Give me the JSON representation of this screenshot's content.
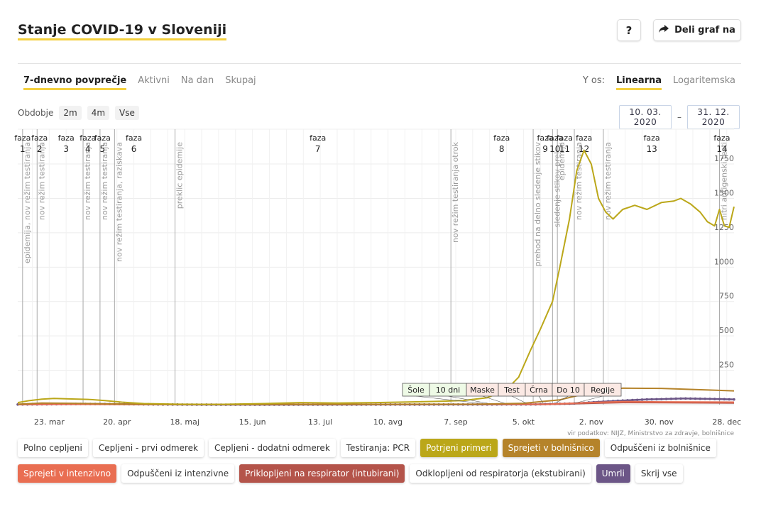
{
  "header": {
    "title": "Stanje COVID-19 v Sloveniji",
    "help_label": "?",
    "share_label": "Deli graf na"
  },
  "mode_tabs": [
    "7-dnevno povprečje",
    "Aktivni",
    "Na dan",
    "Skupaj"
  ],
  "active_mode": "7-dnevno povprečje",
  "yaxis": {
    "label": "Y os:",
    "options": [
      "Linearna",
      "Logaritemska"
    ],
    "active": "Linearna"
  },
  "period": {
    "label": "Obdobje",
    "options": [
      "2m",
      "4m",
      "Vse"
    ]
  },
  "date_range": {
    "from": "10. 03. 2020",
    "sep": "–",
    "to": "31. 12. 2020"
  },
  "legend": {
    "row1": [
      {
        "label": "Polno cepljeni",
        "active": false,
        "color": ""
      },
      {
        "label": "Cepljeni - prvi odmerek",
        "active": false,
        "color": ""
      },
      {
        "label": "Cepljeni - dodatni odmerek",
        "active": false,
        "color": ""
      },
      {
        "label": "Testiranja: PCR",
        "active": false,
        "color": ""
      },
      {
        "label": "Potrjeni primeri",
        "active": true,
        "color": "#bba719"
      },
      {
        "label": "Sprejeti v bolnišnico",
        "active": true,
        "color": "#b5832a"
      },
      {
        "label": "Odpuščeni iz bolnišnice",
        "active": false,
        "color": ""
      }
    ],
    "row2": [
      {
        "label": "Sprejeti v intenzivno",
        "active": true,
        "color": "#e96e52"
      },
      {
        "label": "Odpuščeni iz intenzivne",
        "active": false,
        "color": ""
      },
      {
        "label": "Priklopljeni na respirator (intubirani)",
        "active": true,
        "color": "#b4544a"
      },
      {
        "label": "Odklopljeni od respiratorja (ekstubirani)",
        "active": false,
        "color": ""
      },
      {
        "label": "Umrli",
        "active": true,
        "color": "#6c5687"
      },
      {
        "label": "Skrij vse",
        "active": false,
        "color": ""
      }
    ]
  },
  "chart_data": {
    "type": "line",
    "source": "vir podatkov: NIJZ, Ministrstvo za zdravje, bolnišnice",
    "x_range": [
      "2020-03-10",
      "2020-12-31"
    ],
    "y_range": [
      0,
      1900
    ],
    "x_ticks": [
      {
        "date": "2020-03-23",
        "label": "23. mar"
      },
      {
        "date": "2020-04-20",
        "label": "20. apr"
      },
      {
        "date": "2020-05-18",
        "label": "18. maj"
      },
      {
        "date": "2020-06-15",
        "label": "15. jun"
      },
      {
        "date": "2020-07-13",
        "label": "13. jul"
      },
      {
        "date": "2020-08-10",
        "label": "10. avg"
      },
      {
        "date": "2020-09-07",
        "label": "7. sep"
      },
      {
        "date": "2020-10-05",
        "label": "5. okt"
      },
      {
        "date": "2020-11-02",
        "label": "2. nov"
      },
      {
        "date": "2020-11-30",
        "label": "30. nov"
      },
      {
        "date": "2020-12-28",
        "label": "28. dec"
      }
    ],
    "y_ticks": [
      250,
      500,
      750,
      1000,
      1250,
      1500,
      1750
    ],
    "phases": [
      {
        "label": "faza",
        "num": "1",
        "date": "2020-03-12"
      },
      {
        "label": "faza",
        "num": "2",
        "date": "2020-03-19"
      },
      {
        "label": "faza",
        "num": "3",
        "date": "2020-03-30"
      },
      {
        "label": "faza",
        "num": "4",
        "date": "2020-04-08"
      },
      {
        "label": "faza",
        "num": "5",
        "date": "2020-04-14"
      },
      {
        "label": "faza",
        "num": "6",
        "date": "2020-04-27"
      },
      {
        "label": "faza",
        "num": "7",
        "date": "2020-07-12"
      },
      {
        "label": "faza",
        "num": "8",
        "date": "2020-09-26"
      },
      {
        "label": "faza",
        "num": "9",
        "date": "2020-10-14"
      },
      {
        "label": "faza",
        "num": "10",
        "date": "2020-10-18"
      },
      {
        "label": "faza",
        "num": "11",
        "date": "2020-10-22"
      },
      {
        "label": "faza",
        "num": "12",
        "date": "2020-10-30"
      },
      {
        "label": "faza",
        "num": "13",
        "date": "2020-11-27"
      },
      {
        "label": "faza",
        "num": "14",
        "date": "2020-12-26"
      }
    ],
    "boundaries": [
      {
        "date": "2020-03-12",
        "label": "epidemija, nov režim testiranja"
      },
      {
        "date": "2020-03-18",
        "label": "nov režim testiranja"
      },
      {
        "date": "2020-04-06",
        "label": "nov režim testiranja"
      },
      {
        "date": "2020-04-13",
        "label": "nov režim testiranja"
      },
      {
        "date": "2020-04-19",
        "label": "nov režim testiranja, raziskava"
      },
      {
        "date": "2020-05-14",
        "label": "preklic epidemije"
      },
      {
        "date": "2020-09-05",
        "label": "nov režim testiranja otrok"
      },
      {
        "date": "2020-10-09",
        "label": "prehod na delno sledenje stikov"
      },
      {
        "date": "2020-10-17",
        "label": "sledenje stikov prek..."
      },
      {
        "date": "2020-10-19",
        "label": "epidemija"
      },
      {
        "date": "2020-10-26",
        "label": "nov režim testiranja"
      },
      {
        "date": "2020-11-07",
        "label": "nov režim testiranja"
      },
      {
        "date": "2020-12-25",
        "label": "hitri antigenski testi"
      }
    ],
    "events": [
      {
        "label": "Šole",
        "date": "2020-09-01"
      },
      {
        "label": "10 dni",
        "date": "2020-09-04"
      },
      {
        "label": "Maske",
        "date": "2020-09-11"
      },
      {
        "label": "Test",
        "date": "2020-09-20"
      },
      {
        "label": "Črna",
        "date": "2020-09-27"
      },
      {
        "label": "Do 10",
        "date": "2020-10-02"
      },
      {
        "label": "Regije",
        "date": "2020-10-10"
      }
    ],
    "series": [
      {
        "name": "Potrjeni primeri",
        "color": "#bba719",
        "marker": false,
        "points": [
          [
            "2020-03-10",
            15
          ],
          [
            "2020-03-15",
            30
          ],
          [
            "2020-03-20",
            40
          ],
          [
            "2020-03-25",
            45
          ],
          [
            "2020-03-31",
            42
          ],
          [
            "2020-04-08",
            38
          ],
          [
            "2020-04-15",
            30
          ],
          [
            "2020-04-22",
            18
          ],
          [
            "2020-05-01",
            8
          ],
          [
            "2020-05-15",
            3
          ],
          [
            "2020-06-01",
            2
          ],
          [
            "2020-06-20",
            8
          ],
          [
            "2020-07-05",
            15
          ],
          [
            "2020-07-20",
            12
          ],
          [
            "2020-08-05",
            15
          ],
          [
            "2020-08-20",
            20
          ],
          [
            "2020-09-01",
            25
          ],
          [
            "2020-09-10",
            30
          ],
          [
            "2020-09-20",
            50
          ],
          [
            "2020-09-28",
            110
          ],
          [
            "2020-10-03",
            200
          ],
          [
            "2020-10-08",
            400
          ],
          [
            "2020-10-12",
            550
          ],
          [
            "2020-10-17",
            750
          ],
          [
            "2020-10-20",
            1000
          ],
          [
            "2020-10-24",
            1350
          ],
          [
            "2020-10-27",
            1700
          ],
          [
            "2020-10-30",
            1850
          ],
          [
            "2020-11-02",
            1750
          ],
          [
            "2020-11-05",
            1500
          ],
          [
            "2020-11-08",
            1400
          ],
          [
            "2020-11-11",
            1350
          ],
          [
            "2020-11-15",
            1420
          ],
          [
            "2020-11-20",
            1450
          ],
          [
            "2020-11-25",
            1420
          ],
          [
            "2020-12-01",
            1470
          ],
          [
            "2020-12-06",
            1480
          ],
          [
            "2020-12-09",
            1500
          ],
          [
            "2020-12-13",
            1460
          ],
          [
            "2020-12-17",
            1400
          ],
          [
            "2020-12-20",
            1330
          ],
          [
            "2020-12-23",
            1300
          ],
          [
            "2020-12-25",
            1420
          ],
          [
            "2020-12-27",
            1300
          ],
          [
            "2020-12-29",
            1290
          ],
          [
            "2020-12-31",
            1440
          ]
        ]
      },
      {
        "name": "Sprejeti v bolnišnico",
        "color": "#b5832a",
        "marker": false,
        "points": [
          [
            "2020-03-10",
            3
          ],
          [
            "2020-03-20",
            12
          ],
          [
            "2020-04-01",
            10
          ],
          [
            "2020-04-20",
            5
          ],
          [
            "2020-05-15",
            1
          ],
          [
            "2020-07-15",
            2
          ],
          [
            "2020-09-15",
            3
          ],
          [
            "2020-10-05",
            10
          ],
          [
            "2020-10-20",
            35
          ],
          [
            "2020-11-01",
            85
          ],
          [
            "2020-11-15",
            120
          ],
          [
            "2020-12-01",
            118
          ],
          [
            "2020-12-15",
            110
          ],
          [
            "2020-12-31",
            100
          ]
        ]
      },
      {
        "name": "Sprejeti v intenzivno",
        "color": "#e96e52",
        "marker": false,
        "points": [
          [
            "2020-03-10",
            1
          ],
          [
            "2020-04-01",
            3
          ],
          [
            "2020-05-01",
            1
          ],
          [
            "2020-10-15",
            3
          ],
          [
            "2020-11-01",
            15
          ],
          [
            "2020-11-15",
            22
          ],
          [
            "2020-12-01",
            20
          ],
          [
            "2020-12-31",
            18
          ]
        ]
      },
      {
        "name": "Priklopljeni na respirator (intubirani)",
        "color": "#b4544a",
        "marker": false,
        "points": [
          [
            "2020-03-10",
            1
          ],
          [
            "2020-04-01",
            2
          ],
          [
            "2020-05-01",
            1
          ],
          [
            "2020-10-15",
            2
          ],
          [
            "2020-11-01",
            10
          ],
          [
            "2020-11-15",
            15
          ],
          [
            "2020-12-01",
            14
          ],
          [
            "2020-12-31",
            12
          ]
        ]
      },
      {
        "name": "Umrli",
        "color": "#6c5687",
        "marker": true,
        "points": [
          [
            "2020-03-10",
            1
          ],
          [
            "2020-04-05",
            5
          ],
          [
            "2020-04-20",
            4
          ],
          [
            "2020-05-10",
            1
          ],
          [
            "2020-06-01",
            0
          ],
          [
            "2020-09-01",
            1
          ],
          [
            "2020-10-10",
            2
          ],
          [
            "2020-10-25",
            8
          ],
          [
            "2020-11-05",
            20
          ],
          [
            "2020-11-15",
            30
          ],
          [
            "2020-11-25",
            38
          ],
          [
            "2020-12-01",
            40
          ],
          [
            "2020-12-10",
            45
          ],
          [
            "2020-12-20",
            42
          ],
          [
            "2020-12-31",
            38
          ]
        ]
      }
    ]
  }
}
